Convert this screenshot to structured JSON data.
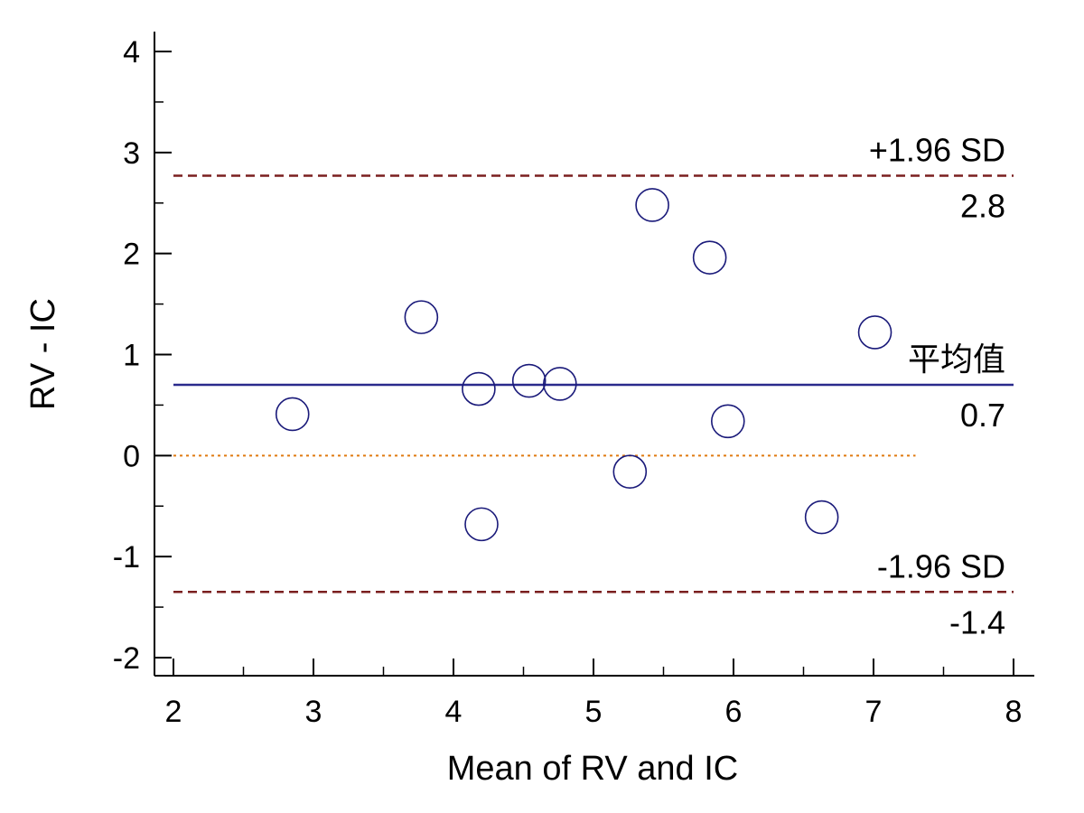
{
  "chart_data": {
    "type": "scatter",
    "title": "",
    "xlabel": "Mean of RV and IC",
    "ylabel": "RV - IC",
    "xlim": [
      2,
      8
    ],
    "ylim": [
      -2,
      4
    ],
    "x_ticks": [
      2,
      3,
      4,
      5,
      6,
      7,
      8
    ],
    "x_tick_labels": [
      "2",
      "3",
      "4",
      "5",
      "6",
      "7",
      "8"
    ],
    "y_ticks": [
      -2,
      -1,
      0,
      1,
      2,
      3,
      4
    ],
    "y_tick_labels": [
      "-2",
      "-1",
      "0",
      "1",
      "2",
      "3",
      "4"
    ],
    "grid": false,
    "points": [
      {
        "x": 2.85,
        "y": 0.41
      },
      {
        "x": 3.77,
        "y": 1.37
      },
      {
        "x": 4.18,
        "y": 0.66
      },
      {
        "x": 4.2,
        "y": -0.68
      },
      {
        "x": 4.54,
        "y": 0.74
      },
      {
        "x": 4.76,
        "y": 0.71
      },
      {
        "x": 5.26,
        "y": -0.16
      },
      {
        "x": 5.42,
        "y": 2.48
      },
      {
        "x": 5.83,
        "y": 1.96
      },
      {
        "x": 5.96,
        "y": 0.34
      },
      {
        "x": 6.63,
        "y": -0.61
      },
      {
        "x": 7.01,
        "y": 1.22
      }
    ],
    "reference_lines": [
      {
        "id": "upper-loa",
        "y": 2.77,
        "label": "+1.96 SD",
        "value_label": "2.8",
        "color": "#7a1f1f",
        "style": "dashed"
      },
      {
        "id": "mean",
        "y": 0.7,
        "label": "平均值",
        "value_label": "0.7",
        "color": "#2a2a8c",
        "style": "solid"
      },
      {
        "id": "lower-loa",
        "y": -1.35,
        "label": "-1.96 SD",
        "value_label": "-1.4",
        "color": "#7a1f1f",
        "style": "dashed"
      },
      {
        "id": "zero",
        "y": 0,
        "label": "",
        "value_label": "",
        "color": "#e07a10",
        "style": "dotted",
        "x_end": 7.3
      }
    ],
    "marker": {
      "shape": "circle",
      "stroke": "#1a1a7a",
      "fill": "none"
    }
  }
}
